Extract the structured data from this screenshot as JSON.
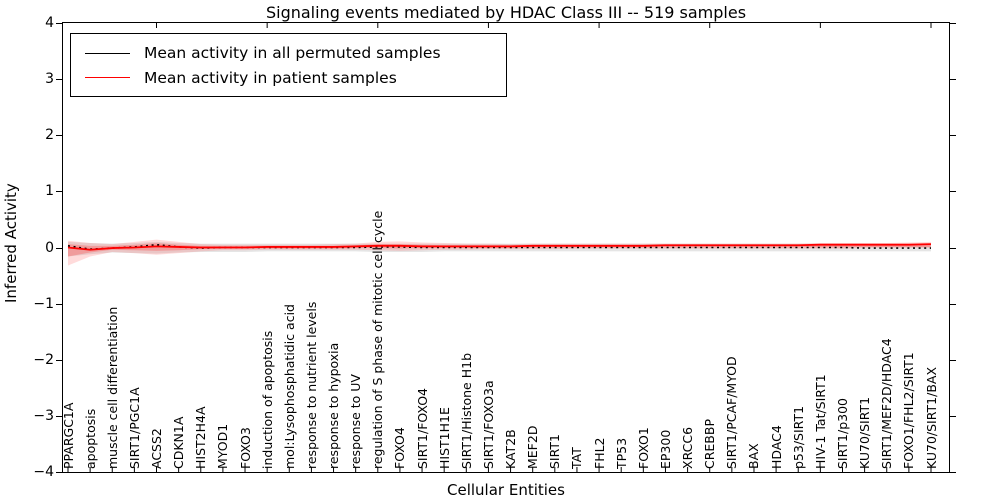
{
  "title": "Signaling events mediated by HDAC Class III -- 519 samples",
  "axes": {
    "xlabel": "Cellular Entities",
    "ylabel": "Inferred Activity",
    "yticks": [
      "4",
      "3",
      "2",
      "1",
      "0",
      "−1",
      "−2",
      "−3",
      "−4"
    ],
    "ytick_values": [
      4,
      3,
      2,
      1,
      0,
      -1,
      -2,
      -3,
      -4
    ],
    "ylim": [
      -4,
      4
    ],
    "grid": "off"
  },
  "legend": {
    "position": "upper-left",
    "items": [
      {
        "label": "Mean activity in all permuted samples",
        "color": "#000000"
      },
      {
        "label": "Mean activity in patient samples",
        "color": "#ff0000"
      }
    ]
  },
  "colors": {
    "permuted_line": "#000000",
    "patient_line": "#ff0000",
    "patient_band": "rgba(255,60,60,0.30)",
    "patient_band_outer": "rgba(255,90,90,0.22)",
    "permuted_band": "rgba(0,0,0,0.10)"
  },
  "chart_data": {
    "type": "line",
    "title": "Signaling events mediated by HDAC Class III -- 519 samples",
    "xlabel": "Cellular Entities",
    "ylabel": "Inferred Activity",
    "ylim": [
      -4,
      4
    ],
    "legend_position": "upper left",
    "categories": [
      "PPARGC1A",
      "apoptosis",
      "muscle cell differentiation",
      "SIRT1/PGC1A",
      "ACSS2",
      "CDKN1A",
      "HIST2H4A",
      "MYOD1",
      "FOXO3",
      "induction of apoptosis",
      "mol:Lysophosphatidic acid",
      "response to nutrient levels",
      "response to hypoxia",
      "response to UV",
      "regulation of S phase of mitotic cell cycle",
      "FOXO4",
      "SIRT1/FOXO4",
      "HIST1H1E",
      "SIRT1/Histone H1b",
      "SIRT1/FOXO3a",
      "KAT2B",
      "MEF2D",
      "SIRT1",
      "TAT",
      "FHL2",
      "TP53",
      "FOXO1",
      "EP300",
      "XRCC6",
      "CREBBP",
      "SIRT1/PCAF/MYOD",
      "BAX",
      "HDAC4",
      "p53/SIRT1",
      "HIV-1 Tat/SIRT1",
      "SIRT1/p300",
      "KU70/SIRT1",
      "SIRT1/MEF2D/HDAC4",
      "FOXO1/FHL2/SIRT1",
      "KU70/SIRT1/BAX"
    ],
    "series": [
      {
        "name": "Mean activity in all permuted samples",
        "style": "dotted",
        "color": "#000000",
        "values": [
          0.03,
          -0.03,
          -0.01,
          0.01,
          0.05,
          0.01,
          -0.01,
          0.0,
          0.0,
          0.0,
          0.0,
          0.0,
          0.0,
          0.0,
          0.01,
          0.01,
          0.0,
          0.0,
          0.0,
          0.0,
          0.0,
          0.0,
          0.0,
          0.0,
          0.0,
          0.0,
          0.0,
          0.0,
          0.0,
          0.0,
          0.0,
          0.0,
          0.0,
          0.0,
          0.0,
          0.0,
          -0.01,
          -0.01,
          -0.01,
          -0.01
        ]
      },
      {
        "name": "Mean activity in patient samples",
        "style": "solid",
        "color": "#ff0000",
        "values": [
          0.0,
          -0.04,
          -0.01,
          0.0,
          0.02,
          0.01,
          0.0,
          0.0,
          0.0,
          0.01,
          0.01,
          0.01,
          0.01,
          0.02,
          0.03,
          0.03,
          0.02,
          0.02,
          0.02,
          0.02,
          0.02,
          0.03,
          0.03,
          0.03,
          0.03,
          0.03,
          0.03,
          0.04,
          0.04,
          0.04,
          0.04,
          0.04,
          0.04,
          0.04,
          0.05,
          0.05,
          0.05,
          0.05,
          0.05,
          0.06
        ]
      }
    ],
    "bands": [
      {
        "name": "permuted-spread-band",
        "color": "rgba(0,0,0,0.10)",
        "upper": [
          0.1,
          0.08,
          0.07,
          0.08,
          0.1,
          0.08,
          0.07,
          0.07,
          0.07,
          0.07,
          0.07,
          0.07,
          0.07,
          0.07,
          0.07,
          0.07,
          0.07,
          0.07,
          0.07,
          0.07,
          0.07,
          0.07,
          0.07,
          0.07,
          0.07,
          0.07,
          0.07,
          0.07,
          0.07,
          0.07,
          0.07,
          0.07,
          0.07,
          0.07,
          0.07,
          0.07,
          0.07,
          0.07,
          0.07,
          0.07
        ],
        "lower": [
          -0.16,
          -0.12,
          -0.09,
          -0.1,
          -0.11,
          -0.09,
          -0.08,
          -0.08,
          -0.08,
          -0.07,
          -0.07,
          -0.07,
          -0.07,
          -0.07,
          -0.08,
          -0.08,
          -0.08,
          -0.07,
          -0.07,
          -0.07,
          -0.07,
          -0.07,
          -0.07,
          -0.07,
          -0.07,
          -0.07,
          -0.07,
          -0.07,
          -0.07,
          -0.07,
          -0.07,
          -0.07,
          -0.07,
          -0.07,
          -0.07,
          -0.07,
          -0.07,
          -0.07,
          -0.07,
          -0.07
        ]
      },
      {
        "name": "patient-band-outer",
        "color": "rgba(255,90,90,0.22)",
        "upper": [
          0.12,
          0.08,
          0.06,
          0.1,
          0.14,
          0.1,
          0.06,
          0.05,
          0.05,
          0.05,
          0.05,
          0.05,
          0.06,
          0.07,
          0.1,
          0.11,
          0.09,
          0.08,
          0.07,
          0.07,
          0.06,
          0.07,
          0.07,
          0.07,
          0.07,
          0.07,
          0.07,
          0.07,
          0.07,
          0.07,
          0.07,
          0.07,
          0.07,
          0.07,
          0.08,
          0.08,
          0.08,
          0.08,
          0.09,
          0.1
        ],
        "lower": [
          -0.32,
          -0.16,
          -0.08,
          -0.1,
          -0.13,
          -0.1,
          -0.07,
          -0.05,
          -0.05,
          -0.04,
          -0.04,
          -0.04,
          -0.04,
          -0.04,
          -0.05,
          -0.06,
          -0.05,
          -0.04,
          -0.04,
          -0.03,
          -0.03,
          -0.03,
          -0.03,
          -0.02,
          -0.02,
          -0.02,
          -0.02,
          -0.02,
          -0.02,
          -0.02,
          -0.02,
          -0.02,
          -0.02,
          -0.02,
          -0.02,
          -0.02,
          -0.01,
          -0.01,
          -0.01,
          -0.01
        ]
      },
      {
        "name": "patient-band-inner",
        "color": "rgba(255,60,60,0.30)",
        "upper": [
          0.06,
          0.03,
          0.03,
          0.05,
          0.08,
          0.05,
          0.03,
          0.03,
          0.03,
          0.03,
          0.03,
          0.03,
          0.03,
          0.04,
          0.06,
          0.06,
          0.05,
          0.04,
          0.04,
          0.04,
          0.04,
          0.04,
          0.04,
          0.04,
          0.04,
          0.04,
          0.04,
          0.05,
          0.05,
          0.05,
          0.05,
          0.05,
          0.05,
          0.05,
          0.06,
          0.06,
          0.06,
          0.06,
          0.06,
          0.07
        ],
        "lower": [
          -0.16,
          -0.09,
          -0.04,
          -0.05,
          -0.06,
          -0.05,
          -0.03,
          -0.02,
          -0.02,
          -0.02,
          -0.02,
          -0.02,
          -0.02,
          -0.01,
          -0.01,
          -0.02,
          -0.01,
          -0.01,
          -0.01,
          -0.01,
          -0.01,
          0.0,
          0.0,
          0.0,
          0.0,
          0.0,
          0.0,
          0.0,
          0.0,
          0.0,
          0.0,
          0.0,
          0.0,
          0.0,
          0.0,
          0.0,
          0.01,
          0.01,
          0.01,
          0.01
        ]
      }
    ],
    "top_axis_major_tick_indices": [
      4,
      9,
      14,
      19,
      24,
      29,
      34,
      39
    ]
  }
}
